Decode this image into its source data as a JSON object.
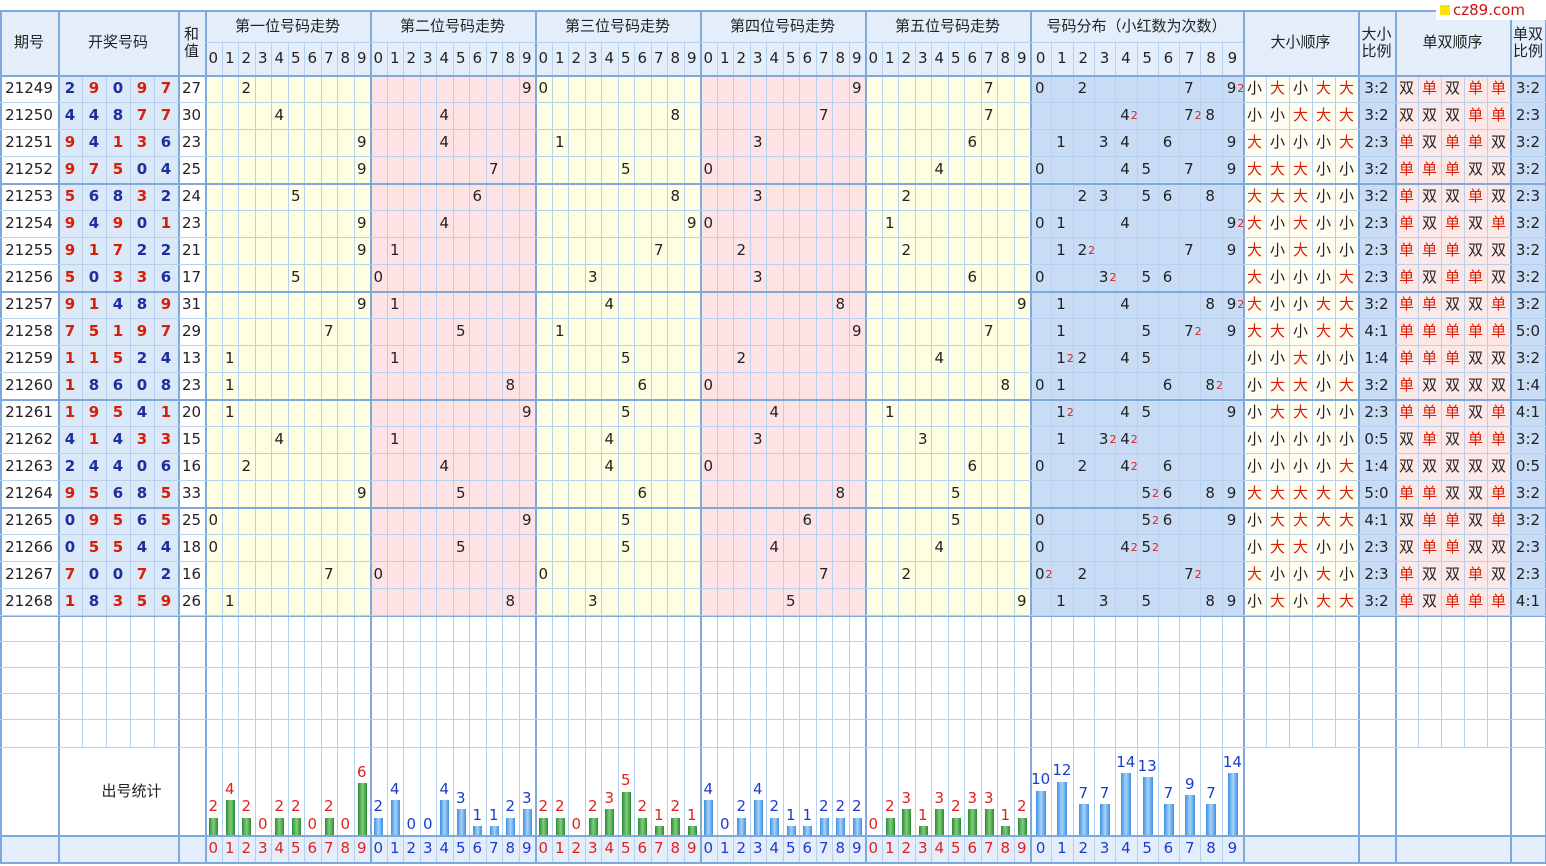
{
  "logo": "cz89.com",
  "header": {
    "issue": "期号",
    "numbers": "开奖号码",
    "sum": "和值",
    "positions": [
      "第一位号码走势",
      "第二位号码走势",
      "第三位号码走势",
      "第四位号码走势",
      "第五位号码走势"
    ],
    "distribution": "号码分布（小红数为次数）",
    "size_order": "大小顺序",
    "size_ratio": "大小比例",
    "parity_order": "单双顺序",
    "parity_ratio": "单双比例"
  },
  "columns": [
    0,
    1,
    2,
    3,
    4,
    5,
    6,
    7,
    8,
    9
  ],
  "draws": [
    {
      "issue": 21249,
      "digits": [
        2,
        9,
        0,
        9,
        7
      ],
      "sum": 27,
      "repeats": [
        {
          "digit": 9,
          "count": 2
        }
      ],
      "size": [
        "小",
        "大",
        "小",
        "大",
        "大"
      ],
      "size_ratio": "3:2",
      "parity": [
        "双",
        "单",
        "双",
        "单",
        "单"
      ],
      "parity_ratio": "3:2"
    },
    {
      "issue": 21250,
      "digits": [
        4,
        4,
        8,
        7,
        7
      ],
      "sum": 30,
      "repeats": [
        {
          "digit": 4,
          "count": 2
        },
        {
          "digit": 7,
          "count": 2
        }
      ],
      "size": [
        "小",
        "小",
        "大",
        "大",
        "大"
      ],
      "size_ratio": "3:2",
      "parity": [
        "双",
        "双",
        "双",
        "单",
        "单"
      ],
      "parity_ratio": "2:3"
    },
    {
      "issue": 21251,
      "digits": [
        9,
        4,
        1,
        3,
        6
      ],
      "sum": 23,
      "repeats": [],
      "size": [
        "大",
        "小",
        "小",
        "小",
        "大"
      ],
      "size_ratio": "2:3",
      "parity": [
        "单",
        "双",
        "单",
        "单",
        "双"
      ],
      "parity_ratio": "3:2"
    },
    {
      "issue": 21252,
      "digits": [
        9,
        7,
        5,
        0,
        4
      ],
      "sum": 25,
      "repeats": [],
      "size": [
        "大",
        "大",
        "大",
        "小",
        "小"
      ],
      "size_ratio": "3:2",
      "parity": [
        "单",
        "单",
        "单",
        "双",
        "双"
      ],
      "parity_ratio": "3:2"
    },
    {
      "issue": 21253,
      "digits": [
        5,
        6,
        8,
        3,
        2
      ],
      "sum": 24,
      "repeats": [],
      "size": [
        "大",
        "大",
        "大",
        "小",
        "小"
      ],
      "size_ratio": "3:2",
      "parity": [
        "单",
        "双",
        "双",
        "单",
        "双"
      ],
      "parity_ratio": "2:3"
    },
    {
      "issue": 21254,
      "digits": [
        9,
        4,
        9,
        0,
        1
      ],
      "sum": 23,
      "repeats": [
        {
          "digit": 9,
          "count": 2
        }
      ],
      "size": [
        "大",
        "小",
        "大",
        "小",
        "小"
      ],
      "size_ratio": "2:3",
      "parity": [
        "单",
        "双",
        "单",
        "双",
        "单"
      ],
      "parity_ratio": "3:2"
    },
    {
      "issue": 21255,
      "digits": [
        9,
        1,
        7,
        2,
        2
      ],
      "sum": 21,
      "repeats": [
        {
          "digit": 2,
          "count": 2
        }
      ],
      "size": [
        "大",
        "小",
        "大",
        "小",
        "小"
      ],
      "size_ratio": "2:3",
      "parity": [
        "单",
        "单",
        "单",
        "双",
        "双"
      ],
      "parity_ratio": "3:2"
    },
    {
      "issue": 21256,
      "digits": [
        5,
        0,
        3,
        3,
        6
      ],
      "sum": 17,
      "repeats": [
        {
          "digit": 3,
          "count": 2
        }
      ],
      "size": [
        "大",
        "小",
        "小",
        "小",
        "大"
      ],
      "size_ratio": "2:3",
      "parity": [
        "单",
        "双",
        "单",
        "单",
        "双"
      ],
      "parity_ratio": "3:2"
    },
    {
      "issue": 21257,
      "digits": [
        9,
        1,
        4,
        8,
        9
      ],
      "sum": 31,
      "repeats": [
        {
          "digit": 9,
          "count": 2
        }
      ],
      "size": [
        "大",
        "小",
        "小",
        "大",
        "大"
      ],
      "size_ratio": "3:2",
      "parity": [
        "单",
        "单",
        "双",
        "双",
        "单"
      ],
      "parity_ratio": "3:2"
    },
    {
      "issue": 21258,
      "digits": [
        7,
        5,
        1,
        9,
        7
      ],
      "sum": 29,
      "repeats": [
        {
          "digit": 7,
          "count": 2
        }
      ],
      "size": [
        "大",
        "大",
        "小",
        "大",
        "大"
      ],
      "size_ratio": "4:1",
      "parity": [
        "单",
        "单",
        "单",
        "单",
        "单"
      ],
      "parity_ratio": "5:0"
    },
    {
      "issue": 21259,
      "digits": [
        1,
        1,
        5,
        2,
        4
      ],
      "sum": 13,
      "repeats": [
        {
          "digit": 1,
          "count": 2
        }
      ],
      "size": [
        "小",
        "小",
        "大",
        "小",
        "小"
      ],
      "size_ratio": "1:4",
      "parity": [
        "单",
        "单",
        "单",
        "双",
        "双"
      ],
      "parity_ratio": "3:2"
    },
    {
      "issue": 21260,
      "digits": [
        1,
        8,
        6,
        0,
        8
      ],
      "sum": 23,
      "repeats": [
        {
          "digit": 8,
          "count": 2
        }
      ],
      "size": [
        "小",
        "大",
        "大",
        "小",
        "大"
      ],
      "size_ratio": "3:2",
      "parity": [
        "单",
        "双",
        "双",
        "双",
        "双"
      ],
      "parity_ratio": "1:4"
    },
    {
      "issue": 21261,
      "digits": [
        1,
        9,
        5,
        4,
        1
      ],
      "sum": 20,
      "repeats": [
        {
          "digit": 1,
          "count": 2
        }
      ],
      "size": [
        "小",
        "大",
        "大",
        "小",
        "小"
      ],
      "size_ratio": "2:3",
      "parity": [
        "单",
        "单",
        "单",
        "双",
        "单"
      ],
      "parity_ratio": "4:1"
    },
    {
      "issue": 21262,
      "digits": [
        4,
        1,
        4,
        3,
        3
      ],
      "sum": 15,
      "repeats": [
        {
          "digit": 3,
          "count": 2
        },
        {
          "digit": 4,
          "count": 2
        }
      ],
      "size": [
        "小",
        "小",
        "小",
        "小",
        "小"
      ],
      "size_ratio": "0:5",
      "parity": [
        "双",
        "单",
        "双",
        "单",
        "单"
      ],
      "parity_ratio": "3:2"
    },
    {
      "issue": 21263,
      "digits": [
        2,
        4,
        4,
        0,
        6
      ],
      "sum": 16,
      "repeats": [
        {
          "digit": 4,
          "count": 2
        }
      ],
      "size": [
        "小",
        "小",
        "小",
        "小",
        "大"
      ],
      "size_ratio": "1:4",
      "parity": [
        "双",
        "双",
        "双",
        "双",
        "双"
      ],
      "parity_ratio": "0:5"
    },
    {
      "issue": 21264,
      "digits": [
        9,
        5,
        6,
        8,
        5
      ],
      "sum": 33,
      "repeats": [
        {
          "digit": 5,
          "count": 2
        }
      ],
      "size": [
        "大",
        "大",
        "大",
        "大",
        "大"
      ],
      "size_ratio": "5:0",
      "parity": [
        "单",
        "单",
        "双",
        "双",
        "单"
      ],
      "parity_ratio": "3:2"
    },
    {
      "issue": 21265,
      "digits": [
        0,
        9,
        5,
        6,
        5
      ],
      "sum": 25,
      "repeats": [
        {
          "digit": 5,
          "count": 2
        }
      ],
      "size": [
        "小",
        "大",
        "大",
        "大",
        "大"
      ],
      "size_ratio": "4:1",
      "parity": [
        "双",
        "单",
        "单",
        "双",
        "单"
      ],
      "parity_ratio": "3:2"
    },
    {
      "issue": 21266,
      "digits": [
        0,
        5,
        5,
        4,
        4
      ],
      "sum": 18,
      "repeats": [
        {
          "digit": 4,
          "count": 2
        },
        {
          "digit": 5,
          "count": 2
        }
      ],
      "size": [
        "小",
        "大",
        "大",
        "小",
        "小"
      ],
      "size_ratio": "2:3",
      "parity": [
        "双",
        "单",
        "单",
        "双",
        "双"
      ],
      "parity_ratio": "2:3"
    },
    {
      "issue": 21267,
      "digits": [
        7,
        0,
        0,
        7,
        2
      ],
      "sum": 16,
      "repeats": [
        {
          "digit": 0,
          "count": 2
        },
        {
          "digit": 7,
          "count": 2
        }
      ],
      "size": [
        "大",
        "小",
        "小",
        "大",
        "小"
      ],
      "size_ratio": "2:3",
      "parity": [
        "单",
        "双",
        "双",
        "单",
        "双"
      ],
      "parity_ratio": "2:3"
    },
    {
      "issue": 21268,
      "digits": [
        1,
        8,
        3,
        5,
        9
      ],
      "sum": 26,
      "repeats": [],
      "size": [
        "小",
        "大",
        "小",
        "大",
        "大"
      ],
      "size_ratio": "3:2",
      "parity": [
        "单",
        "双",
        "单",
        "单",
        "单"
      ],
      "parity_ratio": "4:1"
    }
  ],
  "stats": {
    "label": "出号统计",
    "positions": [
      [
        2,
        4,
        2,
        0,
        2,
        2,
        0,
        2,
        0,
        6
      ],
      [
        2,
        4,
        0,
        0,
        4,
        3,
        1,
        1,
        2,
        3
      ],
      [
        2,
        2,
        0,
        2,
        3,
        5,
        2,
        1,
        2,
        1
      ],
      [
        4,
        0,
        2,
        4,
        2,
        1,
        1,
        2,
        2,
        2
      ],
      [
        0,
        2,
        3,
        1,
        3,
        2,
        3,
        3,
        1,
        2
      ]
    ],
    "distribution": [
      10,
      12,
      7,
      7,
      14,
      13,
      7,
      9,
      7,
      14
    ]
  }
}
